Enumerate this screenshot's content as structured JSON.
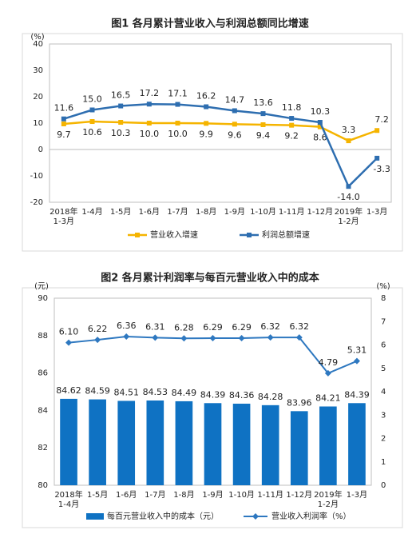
{
  "chart_data": [
    {
      "type": "line",
      "title": "图1  各月累计营业收入与利润总额同比增速",
      "y_label": "(%)",
      "categories": [
        "2018年\n1-3月",
        "1-4月",
        "1-5月",
        "1-6月",
        "1-7月",
        "1-8月",
        "1-9月",
        "1-10月",
        "1-11月",
        "1-12月",
        "2019年\n1-2月",
        "1-3月"
      ],
      "series": [
        {
          "name": "营业收入增速",
          "color": "#f5b400",
          "values": [
            9.7,
            10.6,
            10.3,
            10.0,
            10.0,
            9.9,
            9.6,
            9.4,
            9.2,
            8.6,
            3.3,
            7.2
          ],
          "value_labels": [
            "9.7",
            "10.6",
            "10.3",
            "10.0",
            "10.0",
            "9.9",
            "9.6",
            "9.4",
            "9.2",
            "8.6",
            "3.3",
            "7.2"
          ]
        },
        {
          "name": "利润总额增速",
          "color": "#2e6eb0",
          "values": [
            11.6,
            15.0,
            16.5,
            17.2,
            17.1,
            16.2,
            14.7,
            13.6,
            11.8,
            10.3,
            -14.0,
            -3.3
          ],
          "value_labels": [
            "11.6",
            "15.0",
            "16.5",
            "17.2",
            "17.1",
            "16.2",
            "14.7",
            "13.6",
            "11.8",
            "10.3",
            "-14.0",
            "-3.3"
          ]
        }
      ],
      "ylim": [
        -20,
        40
      ],
      "yticks": [
        -20,
        -10,
        0,
        10,
        20,
        30,
        40
      ],
      "grid": false
    },
    {
      "type": "bar",
      "title": "图2  各月累计利润率与每百元营业收入中的成本",
      "y_label": "(元)",
      "y2_label": "(%)",
      "categories": [
        "2018年\n1-4月",
        "1-5月",
        "1-6月",
        "1-7月",
        "1-8月",
        "1-9月",
        "1-10月",
        "1-11月",
        "1-12月",
        "2019年\n1-2月",
        "1-3月"
      ],
      "series": [
        {
          "name": "每百元营业收入中的成本（元）",
          "type": "bar",
          "color": "#0f72c3",
          "values": [
            84.62,
            84.59,
            84.51,
            84.53,
            84.49,
            84.39,
            84.36,
            84.28,
            83.96,
            84.21,
            84.39
          ]
        },
        {
          "name": "营业收入利润率（%）",
          "type": "line",
          "axis": "y2",
          "color": "#2e78c0",
          "values": [
            6.1,
            6.22,
            6.36,
            6.31,
            6.28,
            6.29,
            6.29,
            6.32,
            6.32,
            4.79,
            5.31
          ],
          "value_labels": [
            "6.10",
            "6.22",
            "6.36",
            "6.31",
            "6.28",
            "6.29",
            "6.29",
            "6.32",
            "6.32",
            "4.79",
            "5.31"
          ]
        }
      ],
      "ylim": [
        80,
        90
      ],
      "yticks": [
        80,
        82,
        84,
        86,
        88,
        90
      ],
      "y2lim": [
        0,
        8
      ],
      "y2ticks": [
        0,
        1,
        2,
        3,
        4,
        5,
        6,
        7,
        8
      ],
      "grid": false
    }
  ]
}
